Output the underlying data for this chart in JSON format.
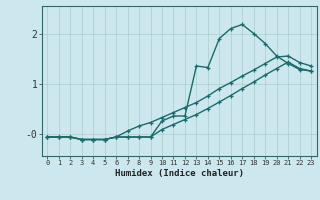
{
  "xlabel": "Humidex (Indice chaleur)",
  "ylabel": "",
  "bg_color": "#cce8ee",
  "grid_color": "#aacccc",
  "line_color": "#1a6b6b",
  "xlim": [
    -0.5,
    23.5
  ],
  "ylim": [
    -0.45,
    2.55
  ],
  "xticks": [
    0,
    1,
    2,
    3,
    4,
    5,
    6,
    7,
    8,
    9,
    10,
    11,
    12,
    13,
    14,
    15,
    16,
    17,
    18,
    19,
    20,
    21,
    22,
    23
  ],
  "yticks": [
    0,
    1,
    2
  ],
  "ytick_labels": [
    "-0",
    "1",
    "2"
  ],
  "line1_x": [
    0,
    1,
    2,
    3,
    4,
    5,
    6,
    7,
    8,
    9,
    10,
    11,
    12,
    13,
    14,
    15,
    16,
    17,
    18,
    19,
    20,
    21,
    22,
    23
  ],
  "line1_y": [
    -0.07,
    -0.07,
    -0.07,
    -0.12,
    -0.12,
    -0.12,
    -0.07,
    -0.07,
    -0.07,
    -0.07,
    0.25,
    0.35,
    0.35,
    1.35,
    1.32,
    1.9,
    2.1,
    2.18,
    2.0,
    1.8,
    1.55,
    1.4,
    1.28,
    1.25
  ],
  "line2_x": [
    0,
    1,
    2,
    3,
    4,
    5,
    6,
    7,
    8,
    9,
    10,
    11,
    12,
    13,
    14,
    15,
    16,
    17,
    18,
    19,
    20,
    21,
    22,
    23
  ],
  "line2_y": [
    -0.07,
    -0.07,
    -0.07,
    -0.12,
    -0.12,
    -0.12,
    -0.07,
    0.05,
    0.15,
    0.22,
    0.32,
    0.42,
    0.52,
    0.62,
    0.75,
    0.9,
    1.02,
    1.15,
    1.27,
    1.4,
    1.53,
    1.55,
    1.42,
    1.35
  ],
  "line3_x": [
    0,
    1,
    2,
    3,
    4,
    5,
    6,
    7,
    8,
    9,
    10,
    11,
    12,
    13,
    14,
    15,
    16,
    17,
    18,
    19,
    20,
    21,
    22,
    23
  ],
  "line3_y": [
    -0.07,
    -0.07,
    -0.07,
    -0.12,
    -0.12,
    -0.12,
    -0.07,
    -0.07,
    -0.07,
    -0.07,
    0.08,
    0.18,
    0.28,
    0.38,
    0.5,
    0.63,
    0.76,
    0.9,
    1.03,
    1.17,
    1.3,
    1.43,
    1.3,
    1.25
  ],
  "marker": "+",
  "markersize": 3.5,
  "linewidth": 1.0
}
